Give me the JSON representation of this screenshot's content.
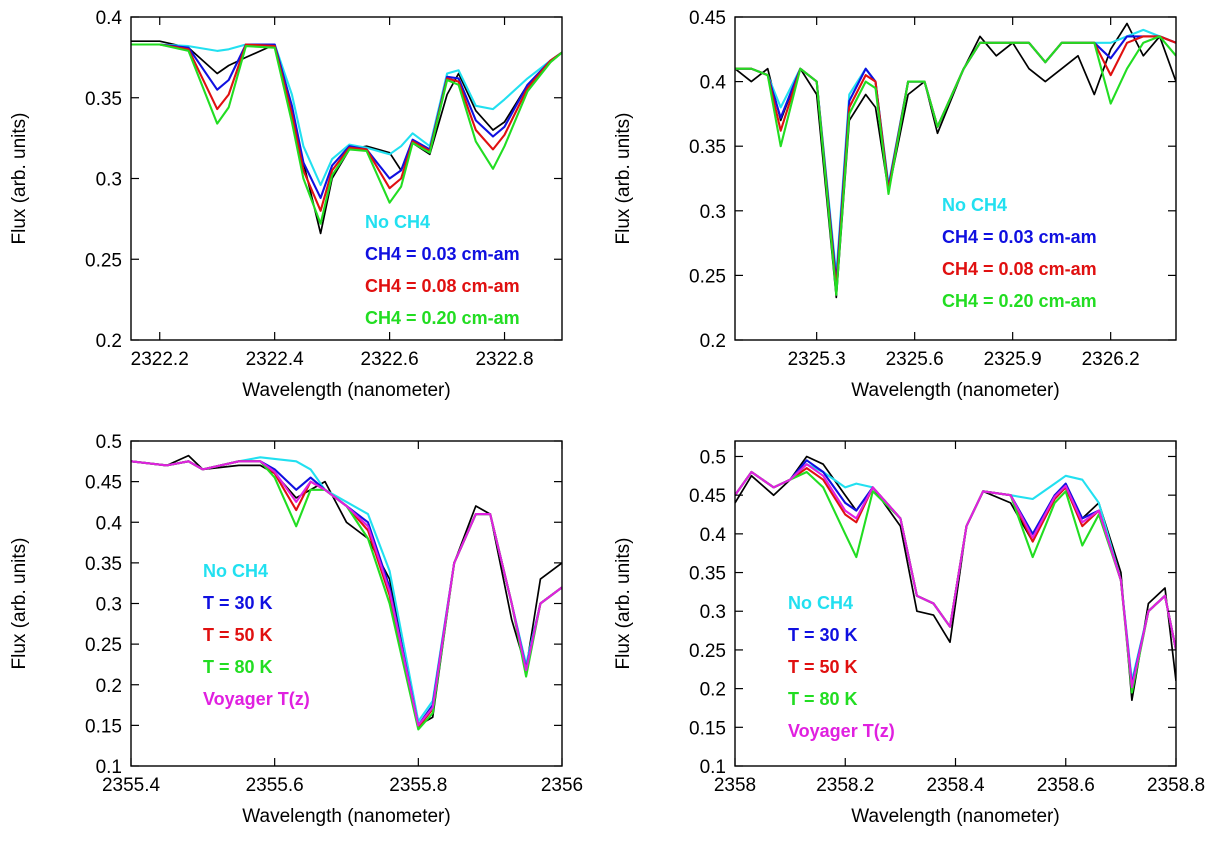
{
  "chart_data": [
    {
      "type": "line",
      "xlabel": "Wavelength (nanometer)",
      "ylabel": "Flux (arb. units)",
      "xlim": [
        2322.15,
        2322.9
      ],
      "ylim": [
        0.2,
        0.4
      ],
      "xticks": [
        2322.2,
        2322.4,
        2322.6,
        2322.8
      ],
      "yticks": [
        0.2,
        0.25,
        0.3,
        0.35,
        0.4
      ],
      "legend_placement": "inside-lower-right",
      "legend": [
        {
          "label": "No CH4",
          "color": "#22e0f0"
        },
        {
          "label": "CH4 = 0.03 cm-am",
          "color": "#1010e0"
        },
        {
          "label": "CH4 = 0.08 cm-am",
          "color": "#e01010"
        },
        {
          "label": "CH4 = 0.20 cm-am",
          "color": "#22dd22"
        }
      ],
      "x": [
        2322.15,
        2322.2,
        2322.25,
        2322.3,
        2322.32,
        2322.35,
        2322.4,
        2322.43,
        2322.45,
        2322.48,
        2322.5,
        2322.53,
        2322.56,
        2322.6,
        2322.62,
        2322.64,
        2322.67,
        2322.7,
        2322.72,
        2322.75,
        2322.78,
        2322.8,
        2322.84,
        2322.88,
        2322.9
      ],
      "series": [
        {
          "color": "#000000",
          "values": [
            0.385,
            0.385,
            0.381,
            0.365,
            0.37,
            0.375,
            0.383,
            0.34,
            0.31,
            0.266,
            0.3,
            0.318,
            0.32,
            0.316,
            0.305,
            0.322,
            0.315,
            0.352,
            0.365,
            0.342,
            0.33,
            0.335,
            0.358,
            0.372,
            0.378
          ]
        },
        {
          "color": "#22e0f0",
          "values": [
            0.383,
            0.383,
            0.382,
            0.379,
            0.38,
            0.383,
            0.383,
            0.352,
            0.32,
            0.296,
            0.312,
            0.321,
            0.319,
            0.315,
            0.32,
            0.328,
            0.32,
            0.365,
            0.367,
            0.345,
            0.343,
            0.349,
            0.362,
            0.373,
            0.378
          ]
        },
        {
          "color": "#1010e0",
          "values": [
            0.383,
            0.383,
            0.381,
            0.355,
            0.361,
            0.383,
            0.383,
            0.345,
            0.31,
            0.288,
            0.308,
            0.32,
            0.318,
            0.3,
            0.305,
            0.324,
            0.318,
            0.363,
            0.362,
            0.336,
            0.326,
            0.332,
            0.358,
            0.373,
            0.378
          ]
        },
        {
          "color": "#e01010",
          "values": [
            0.383,
            0.383,
            0.38,
            0.343,
            0.352,
            0.383,
            0.382,
            0.34,
            0.305,
            0.28,
            0.305,
            0.319,
            0.318,
            0.294,
            0.3,
            0.323,
            0.317,
            0.362,
            0.36,
            0.33,
            0.318,
            0.327,
            0.356,
            0.373,
            0.378
          ]
        },
        {
          "color": "#22dd22",
          "values": [
            0.383,
            0.383,
            0.379,
            0.334,
            0.344,
            0.382,
            0.381,
            0.335,
            0.3,
            0.272,
            0.302,
            0.318,
            0.317,
            0.285,
            0.295,
            0.322,
            0.316,
            0.361,
            0.358,
            0.323,
            0.306,
            0.32,
            0.354,
            0.372,
            0.378
          ]
        }
      ]
    },
    {
      "type": "line",
      "xlabel": "Wavelength (nanometer)",
      "ylabel": "Flux (arb. units)",
      "xlim": [
        2325.05,
        2326.4
      ],
      "ylim": [
        0.2,
        0.45
      ],
      "xticks": [
        2325.3,
        2325.6,
        2325.9,
        2326.2
      ],
      "yticks": [
        0.2,
        0.25,
        0.3,
        0.35,
        0.4,
        0.45
      ],
      "legend_placement": "inside-lower-right",
      "legend": [
        {
          "label": "No CH4",
          "color": "#22e0f0"
        },
        {
          "label": "CH4 = 0.03 cm-am",
          "color": "#1010e0"
        },
        {
          "label": "CH4 = 0.08 cm-am",
          "color": "#e01010"
        },
        {
          "label": "CH4 = 0.20 cm-am",
          "color": "#22dd22"
        }
      ],
      "x": [
        2325.05,
        2325.1,
        2325.15,
        2325.19,
        2325.25,
        2325.3,
        2325.36,
        2325.4,
        2325.45,
        2325.48,
        2325.52,
        2325.58,
        2325.63,
        2325.67,
        2325.75,
        2325.8,
        2325.85,
        2325.9,
        2325.95,
        2326.0,
        2326.05,
        2326.1,
        2326.15,
        2326.2,
        2326.25,
        2326.3,
        2326.35,
        2326.4
      ],
      "series": [
        {
          "color": "#000000",
          "values": [
            0.41,
            0.4,
            0.41,
            0.37,
            0.41,
            0.39,
            0.233,
            0.37,
            0.39,
            0.38,
            0.315,
            0.39,
            0.4,
            0.36,
            0.41,
            0.435,
            0.42,
            0.43,
            0.41,
            0.4,
            0.41,
            0.42,
            0.39,
            0.425,
            0.445,
            0.42,
            0.435,
            0.4
          ]
        },
        {
          "color": "#22e0f0",
          "values": [
            0.41,
            0.41,
            0.405,
            0.38,
            0.41,
            0.4,
            0.25,
            0.39,
            0.41,
            0.4,
            0.32,
            0.4,
            0.4,
            0.365,
            0.41,
            0.43,
            0.43,
            0.43,
            0.43,
            0.415,
            0.43,
            0.43,
            0.43,
            0.43,
            0.435,
            0.44,
            0.435,
            0.43
          ]
        },
        {
          "color": "#1010e0",
          "values": [
            0.41,
            0.41,
            0.405,
            0.372,
            0.41,
            0.4,
            0.245,
            0.385,
            0.41,
            0.4,
            0.318,
            0.4,
            0.4,
            0.365,
            0.41,
            0.43,
            0.43,
            0.43,
            0.43,
            0.415,
            0.43,
            0.43,
            0.43,
            0.418,
            0.435,
            0.435,
            0.435,
            0.43
          ]
        },
        {
          "color": "#e01010",
          "values": [
            0.41,
            0.41,
            0.405,
            0.362,
            0.41,
            0.4,
            0.24,
            0.38,
            0.405,
            0.4,
            0.316,
            0.4,
            0.4,
            0.365,
            0.41,
            0.43,
            0.43,
            0.43,
            0.43,
            0.415,
            0.43,
            0.43,
            0.43,
            0.405,
            0.43,
            0.435,
            0.435,
            0.43
          ]
        },
        {
          "color": "#22dd22",
          "values": [
            0.41,
            0.41,
            0.405,
            0.35,
            0.41,
            0.4,
            0.235,
            0.375,
            0.4,
            0.395,
            0.313,
            0.4,
            0.4,
            0.365,
            0.41,
            0.43,
            0.43,
            0.43,
            0.43,
            0.415,
            0.43,
            0.43,
            0.43,
            0.383,
            0.41,
            0.43,
            0.435,
            0.42
          ]
        }
      ]
    },
    {
      "type": "line",
      "xlabel": "Wavelength (nanometer)",
      "ylabel": "Flux (arb. units)",
      "xlim": [
        2355.4,
        2356.0
      ],
      "ylim": [
        0.1,
        0.5
      ],
      "xticks": [
        2355.4,
        2355.6,
        2355.8,
        2356
      ],
      "yticks": [
        0.1,
        0.15,
        0.2,
        0.25,
        0.3,
        0.35,
        0.4,
        0.45,
        0.5
      ],
      "legend_placement": "inside-lower-left",
      "legend": [
        {
          "label": "No CH4",
          "color": "#22e0f0"
        },
        {
          "label": "T = 30 K",
          "color": "#1010e0"
        },
        {
          "label": "T = 50 K",
          "color": "#e01010"
        },
        {
          "label": "T = 80 K",
          "color": "#22dd22"
        },
        {
          "label": "Voyager T(z)",
          "color": "#e020e0"
        }
      ],
      "x": [
        2355.4,
        2355.45,
        2355.48,
        2355.5,
        2355.55,
        2355.58,
        2355.6,
        2355.63,
        2355.65,
        2355.67,
        2355.7,
        2355.73,
        2355.76,
        2355.8,
        2355.82,
        2355.85,
        2355.88,
        2355.9,
        2355.93,
        2355.95,
        2355.97,
        2356.0
      ],
      "series": [
        {
          "color": "#000000",
          "values": [
            0.475,
            0.47,
            0.482,
            0.465,
            0.47,
            0.47,
            0.46,
            0.43,
            0.44,
            0.45,
            0.4,
            0.38,
            0.33,
            0.15,
            0.16,
            0.35,
            0.42,
            0.41,
            0.28,
            0.22,
            0.33,
            0.35
          ]
        },
        {
          "color": "#22e0f0",
          "values": [
            0.475,
            0.47,
            0.475,
            0.465,
            0.475,
            0.48,
            0.478,
            0.475,
            0.465,
            0.44,
            0.425,
            0.41,
            0.34,
            0.155,
            0.18,
            0.35,
            0.41,
            0.41,
            0.3,
            0.225,
            0.3,
            0.32
          ]
        },
        {
          "color": "#1010e0",
          "values": [
            0.475,
            0.47,
            0.475,
            0.465,
            0.475,
            0.475,
            0.465,
            0.44,
            0.455,
            0.44,
            0.42,
            0.4,
            0.32,
            0.15,
            0.175,
            0.35,
            0.41,
            0.41,
            0.3,
            0.22,
            0.3,
            0.32
          ]
        },
        {
          "color": "#e01010",
          "values": [
            0.475,
            0.47,
            0.475,
            0.465,
            0.475,
            0.475,
            0.46,
            0.415,
            0.45,
            0.44,
            0.42,
            0.39,
            0.31,
            0.148,
            0.17,
            0.35,
            0.41,
            0.41,
            0.3,
            0.215,
            0.3,
            0.32
          ]
        },
        {
          "color": "#22dd22",
          "values": [
            0.475,
            0.47,
            0.475,
            0.465,
            0.475,
            0.475,
            0.455,
            0.395,
            0.44,
            0.44,
            0.42,
            0.38,
            0.3,
            0.145,
            0.165,
            0.35,
            0.41,
            0.41,
            0.3,
            0.21,
            0.3,
            0.32
          ]
        },
        {
          "color": "#e020e0",
          "values": [
            0.475,
            0.47,
            0.475,
            0.465,
            0.475,
            0.475,
            0.462,
            0.425,
            0.45,
            0.44,
            0.42,
            0.395,
            0.315,
            0.15,
            0.172,
            0.35,
            0.41,
            0.41,
            0.3,
            0.218,
            0.3,
            0.32
          ]
        }
      ]
    },
    {
      "type": "line",
      "xlabel": "Wavelength (nanometer)",
      "ylabel": "Flux (arb. units)",
      "xlim": [
        2358.0,
        2358.8
      ],
      "ylim": [
        0.1,
        0.52
      ],
      "xticks": [
        2358,
        2358.2,
        2358.4,
        2358.6,
        2358.8
      ],
      "yticks": [
        0.1,
        0.15,
        0.2,
        0.25,
        0.3,
        0.35,
        0.4,
        0.45,
        0.5
      ],
      "legend_placement": "inside-lower-left",
      "legend": [
        {
          "label": "No CH4",
          "color": "#22e0f0"
        },
        {
          "label": "T = 30 K",
          "color": "#1010e0"
        },
        {
          "label": "T = 50 K",
          "color": "#e01010"
        },
        {
          "label": "T = 80 K",
          "color": "#22dd22"
        },
        {
          "label": "Voyager T(z)",
          "color": "#e020e0"
        }
      ],
      "x": [
        2358.0,
        2358.03,
        2358.07,
        2358.1,
        2358.13,
        2358.16,
        2358.2,
        2358.22,
        2358.25,
        2358.3,
        2358.33,
        2358.36,
        2358.39,
        2358.42,
        2358.45,
        2358.5,
        2358.54,
        2358.58,
        2358.6,
        2358.63,
        2358.66,
        2358.7,
        2358.72,
        2358.75,
        2358.78,
        2358.8
      ],
      "series": [
        {
          "color": "#000000",
          "values": [
            0.44,
            0.475,
            0.45,
            0.47,
            0.5,
            0.49,
            0.45,
            0.43,
            0.46,
            0.41,
            0.3,
            0.295,
            0.26,
            0.41,
            0.455,
            0.44,
            0.39,
            0.45,
            0.46,
            0.42,
            0.44,
            0.35,
            0.185,
            0.31,
            0.33,
            0.21
          ]
        },
        {
          "color": "#22e0f0",
          "values": [
            0.45,
            0.48,
            0.46,
            0.47,
            0.49,
            0.48,
            0.46,
            0.465,
            0.46,
            0.42,
            0.32,
            0.31,
            0.28,
            0.41,
            0.455,
            0.45,
            0.445,
            0.465,
            0.475,
            0.47,
            0.44,
            0.34,
            0.21,
            0.3,
            0.32,
            0.25
          ]
        },
        {
          "color": "#1010e0",
          "values": [
            0.45,
            0.48,
            0.46,
            0.47,
            0.495,
            0.48,
            0.44,
            0.43,
            0.46,
            0.42,
            0.32,
            0.31,
            0.28,
            0.41,
            0.455,
            0.45,
            0.4,
            0.45,
            0.465,
            0.42,
            0.43,
            0.34,
            0.205,
            0.3,
            0.32,
            0.25
          ]
        },
        {
          "color": "#e01010",
          "values": [
            0.45,
            0.48,
            0.46,
            0.47,
            0.485,
            0.47,
            0.425,
            0.415,
            0.46,
            0.42,
            0.32,
            0.31,
            0.28,
            0.41,
            0.455,
            0.45,
            0.39,
            0.445,
            0.46,
            0.41,
            0.43,
            0.34,
            0.2,
            0.3,
            0.32,
            0.25
          ]
        },
        {
          "color": "#22dd22",
          "values": [
            0.45,
            0.48,
            0.46,
            0.47,
            0.48,
            0.46,
            0.4,
            0.37,
            0.455,
            0.42,
            0.32,
            0.31,
            0.28,
            0.41,
            0.455,
            0.45,
            0.37,
            0.44,
            0.455,
            0.385,
            0.425,
            0.34,
            0.195,
            0.3,
            0.32,
            0.25
          ]
        },
        {
          "color": "#e020e0",
          "values": [
            0.45,
            0.48,
            0.46,
            0.47,
            0.49,
            0.475,
            0.43,
            0.42,
            0.46,
            0.42,
            0.32,
            0.31,
            0.28,
            0.41,
            0.455,
            0.45,
            0.395,
            0.448,
            0.462,
            0.415,
            0.43,
            0.34,
            0.202,
            0.3,
            0.32,
            0.25
          ]
        }
      ]
    }
  ]
}
